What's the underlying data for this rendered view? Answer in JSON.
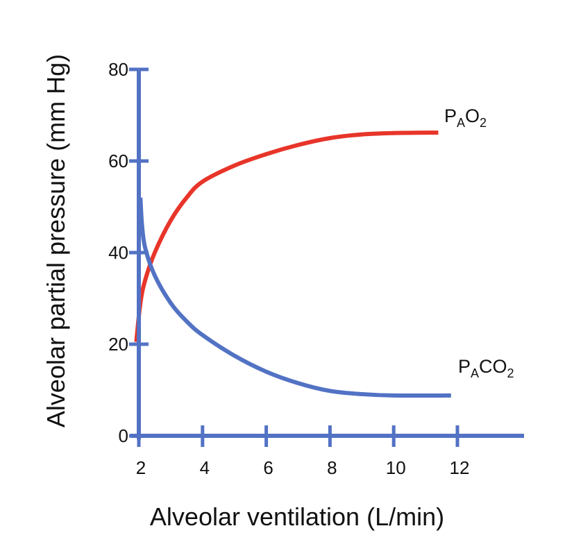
{
  "chart_data": {
    "type": "line",
    "title": "",
    "xlabel": "Alveolar ventilation (L/min)",
    "ylabel": "Alveolar partial pressure (mm Hg)",
    "xlim": [
      2,
      14
    ],
    "ylim": [
      0,
      80
    ],
    "x_ticks": [
      2,
      4,
      6,
      8,
      10,
      12
    ],
    "y_ticks": [
      0,
      20,
      40,
      60,
      80
    ],
    "grid": false,
    "legend": "inline labels at right end of each curve",
    "colors": {
      "axis": "#5272c4",
      "PAO2": "#e8352a",
      "PACO2": "#5272c4"
    },
    "series": [
      {
        "name": "PAO2",
        "label_main": "P",
        "label_sub": "A",
        "label_rest": "O",
        "label_sub2": "2",
        "x": [
          1.92,
          2.05,
          2.2,
          2.5,
          3.0,
          3.5,
          4.0,
          5.0,
          6.0,
          7.0,
          8.0,
          9.0,
          10.0,
          11.4
        ],
        "y": [
          20.5,
          29,
          34,
          40,
          47,
          52,
          55.5,
          59,
          61.5,
          63.5,
          65,
          65.8,
          66.1,
          66.2
        ]
      },
      {
        "name": "PACO2",
        "label_main": "P",
        "label_sub": "A",
        "label_rest": "CO",
        "label_sub2": "2",
        "x": [
          2.05,
          2.1,
          2.2,
          2.5,
          3.0,
          3.5,
          4.0,
          5.0,
          6.0,
          7.0,
          8.0,
          9.0,
          10.0,
          11.8
        ],
        "y": [
          52,
          46,
          41,
          35,
          29,
          25,
          22,
          17.5,
          14,
          11.5,
          9.8,
          9.1,
          8.8,
          8.8
        ]
      }
    ]
  }
}
